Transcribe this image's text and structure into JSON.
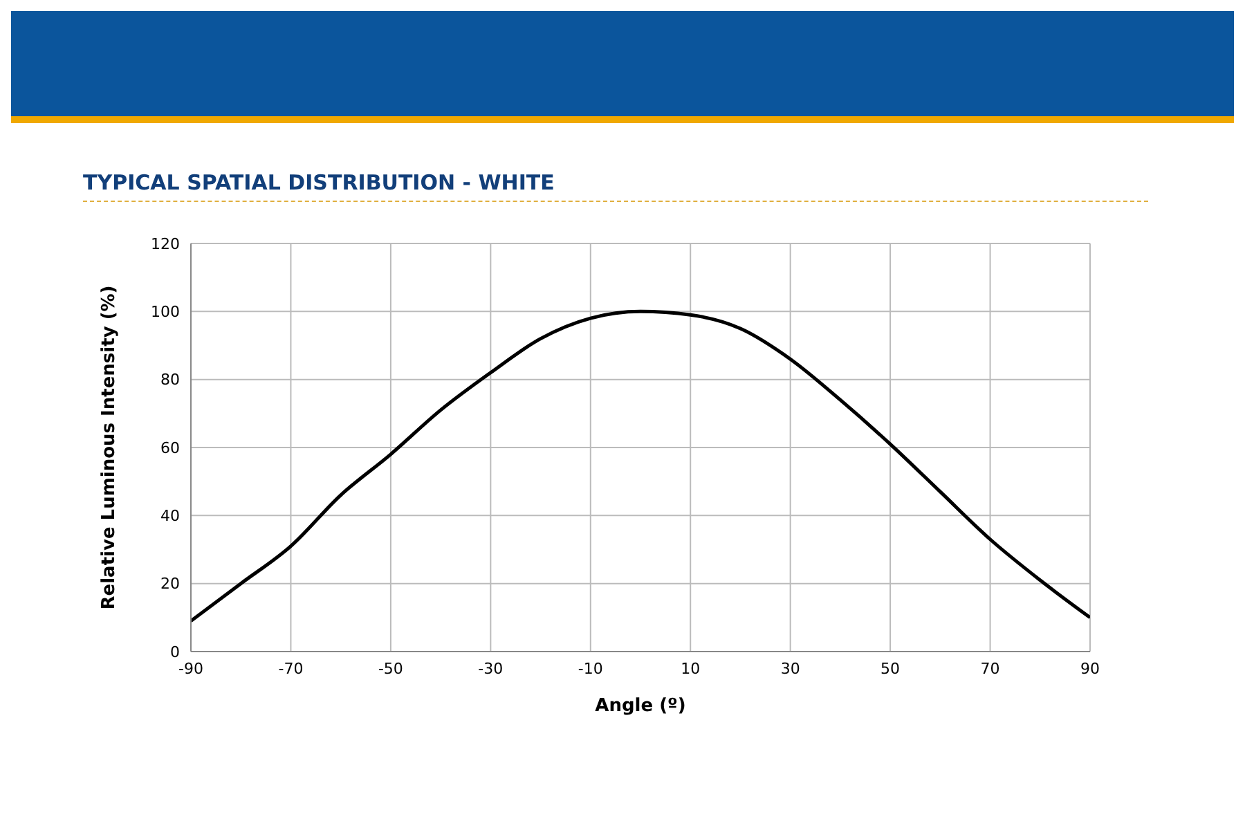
{
  "chart_data": {
    "type": "line",
    "title": "TYPICAL SPATIAL DISTRIBUTION - WHITE",
    "xlabel": "Angle (º)",
    "ylabel": "Relative Luminous Intensity (%)",
    "x": [
      -90,
      -80,
      -70,
      -60,
      -50,
      -40,
      -30,
      -20,
      -10,
      0,
      10,
      20,
      30,
      40,
      50,
      60,
      70,
      80,
      90
    ],
    "series": [
      {
        "color": "#000000",
        "values": [
          9,
          20,
          31,
          46,
          58,
          71,
          82,
          92,
          98,
          100,
          99,
          95,
          86,
          74,
          61,
          47,
          33,
          21,
          10
        ]
      }
    ],
    "xlim": [
      -90,
      90
    ],
    "xticks": [
      -90,
      -70,
      -50,
      -30,
      -10,
      10,
      30,
      50,
      70,
      90
    ],
    "ylim": [
      0,
      120
    ],
    "yticks": [
      0,
      20,
      40,
      60,
      80,
      100,
      120
    ],
    "grid": true,
    "marker": "none",
    "line_style": "solid",
    "legend": false
  }
}
